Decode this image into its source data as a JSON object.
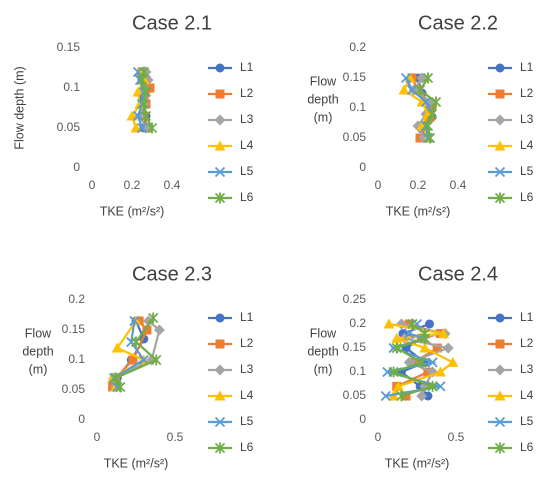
{
  "colors": {
    "L1": "#4472C4",
    "L2": "#ED7D31",
    "L3": "#A5A5A5",
    "L4": "#FFC000",
    "L5": "#5B9BD5",
    "L6": "#70AD47"
  },
  "markers": {
    "L1": "circle",
    "L2": "square",
    "L3": "diamond",
    "L4": "triangle",
    "L5": "x",
    "L6": "star"
  },
  "chart_data": [
    {
      "type": "scatter",
      "title": "Case 2.1",
      "xlabel": "TKE (m²/s²)",
      "ylabel": "",
      "xlim": [
        0,
        0.4
      ],
      "ylim": [
        0,
        0.15
      ],
      "xticks": [
        "0",
        "0.2",
        "0.4"
      ],
      "yticks": [
        "0",
        "0.05",
        "0.1",
        "0.15"
      ],
      "legend_position": "right",
      "series": [
        {
          "name": "L1",
          "x": [
            0.26,
            0.27,
            0.25,
            0.24,
            0.25,
            0.26
          ],
          "y": [
            0.05,
            0.065,
            0.08,
            0.095,
            0.11,
            0.12
          ]
        },
        {
          "name": "L2",
          "x": [
            0.28,
            0.26,
            0.27,
            0.29,
            0.27,
            0.25
          ],
          "y": [
            0.05,
            0.065,
            0.08,
            0.1,
            0.11,
            0.12
          ]
        },
        {
          "name": "L3",
          "x": [
            0.27,
            0.24,
            0.26,
            0.25,
            0.28,
            0.27
          ],
          "y": [
            0.05,
            0.065,
            0.08,
            0.095,
            0.11,
            0.12
          ]
        },
        {
          "name": "L4",
          "x": [
            0.22,
            0.2,
            0.24,
            0.23,
            0.26,
            0.24
          ],
          "y": [
            0.05,
            0.065,
            0.08,
            0.095,
            0.11,
            0.12
          ]
        },
        {
          "name": "L5",
          "x": [
            0.25,
            0.23,
            0.25,
            0.26,
            0.24,
            0.23
          ],
          "y": [
            0.05,
            0.065,
            0.08,
            0.095,
            0.11,
            0.12
          ]
        },
        {
          "name": "L6",
          "x": [
            0.3,
            0.27,
            0.26,
            0.27,
            0.25,
            0.26
          ],
          "y": [
            0.05,
            0.065,
            0.08,
            0.095,
            0.11,
            0.12
          ]
        }
      ]
    },
    {
      "type": "scatter",
      "title": "Case 2.2",
      "xlabel": "TKE (m²/s²)",
      "ylabel": "Flow depth (m)",
      "xlim": [
        0,
        0.4
      ],
      "ylim": [
        0,
        0.2
      ],
      "xticks": [
        "0",
        "0.2",
        "0.4"
      ],
      "yticks": [
        "0",
        "0.05",
        "0.1",
        "0.15",
        "0.2"
      ],
      "legend_position": "right",
      "series": [
        {
          "name": "L1",
          "x": [
            0.24,
            0.22,
            0.27,
            0.25,
            0.22,
            0.2
          ],
          "y": [
            0.05,
            0.065,
            0.085,
            0.105,
            0.125,
            0.15
          ]
        },
        {
          "name": "L2",
          "x": [
            0.21,
            0.23,
            0.26,
            0.27,
            0.2,
            0.17
          ],
          "y": [
            0.05,
            0.07,
            0.085,
            0.105,
            0.13,
            0.15
          ]
        },
        {
          "name": "L3",
          "x": [
            0.23,
            0.2,
            0.24,
            0.26,
            0.18,
            0.22
          ],
          "y": [
            0.05,
            0.07,
            0.09,
            0.11,
            0.13,
            0.15
          ]
        },
        {
          "name": "L4",
          "x": [
            0.25,
            0.22,
            0.25,
            0.22,
            0.13,
            0.16
          ],
          "y": [
            0.05,
            0.07,
            0.09,
            0.11,
            0.13,
            0.15
          ]
        },
        {
          "name": "L5",
          "x": [
            0.25,
            0.24,
            0.27,
            0.24,
            0.17,
            0.14
          ],
          "y": [
            0.05,
            0.07,
            0.09,
            0.11,
            0.13,
            0.15
          ]
        },
        {
          "name": "L6",
          "x": [
            0.26,
            0.25,
            0.27,
            0.29,
            0.21,
            0.25
          ],
          "y": [
            0.05,
            0.07,
            0.09,
            0.11,
            0.13,
            0.15
          ]
        }
      ]
    },
    {
      "type": "scatter",
      "title": "Case 2.3",
      "xlabel": "TKE (m²/s²)",
      "ylabel": "Flow depth (m)",
      "xlim": [
        0,
        0.5
      ],
      "ylim": [
        0,
        0.2
      ],
      "xticks": [
        "0",
        "0.5"
      ],
      "yticks": [
        "0",
        "0.05",
        "0.1",
        "0.15",
        "0.2"
      ],
      "legend_position": "right",
      "series": [
        {
          "name": "L1",
          "x": [
            0.12,
            0.13,
            0.22,
            0.3,
            0.25
          ],
          "y": [
            0.055,
            0.07,
            0.1,
            0.135,
            0.165
          ]
        },
        {
          "name": "L2",
          "x": [
            0.1,
            0.12,
            0.23,
            0.32,
            0.27
          ],
          "y": [
            0.055,
            0.07,
            0.1,
            0.15,
            0.165
          ]
        },
        {
          "name": "L3",
          "x": [
            0.12,
            0.11,
            0.35,
            0.4,
            0.33
          ],
          "y": [
            0.055,
            0.07,
            0.1,
            0.15,
            0.165
          ]
        },
        {
          "name": "L4",
          "x": [
            0.12,
            0.1,
            0.3,
            0.13,
            0.25
          ],
          "y": [
            0.055,
            0.07,
            0.1,
            0.12,
            0.165
          ]
        },
        {
          "name": "L5",
          "x": [
            0.13,
            0.11,
            0.3,
            0.22,
            0.24
          ],
          "y": [
            0.055,
            0.07,
            0.1,
            0.13,
            0.165
          ]
        },
        {
          "name": "L6",
          "x": [
            0.15,
            0.12,
            0.38,
            0.25,
            0.36
          ],
          "y": [
            0.055,
            0.07,
            0.1,
            0.13,
            0.17
          ]
        }
      ]
    },
    {
      "type": "scatter",
      "title": "Case 2.4",
      "xlabel": "TKE (m²/s²)",
      "ylabel": "Flow depth (m)",
      "xlim": [
        0,
        0.5
      ],
      "ylim": [
        0,
        0.25
      ],
      "xticks": [
        "0",
        "0.5"
      ],
      "yticks": [
        "0",
        "0.05",
        "0.1",
        "0.15",
        "0.2",
        "0.25"
      ],
      "legend_position": "right",
      "series": [
        {
          "name": "L1",
          "x": [
            0.32,
            0.27,
            0.15,
            0.3,
            0.18,
            0.28,
            0.16,
            0.33
          ],
          "y": [
            0.05,
            0.07,
            0.1,
            0.12,
            0.15,
            0.17,
            0.18,
            0.2
          ]
        },
        {
          "name": "L2",
          "x": [
            0.18,
            0.12,
            0.32,
            0.23,
            0.38,
            0.28,
            0.4,
            0.2
          ],
          "y": [
            0.05,
            0.07,
            0.1,
            0.12,
            0.15,
            0.17,
            0.18,
            0.2
          ]
        },
        {
          "name": "L3",
          "x": [
            0.28,
            0.3,
            0.35,
            0.2,
            0.45,
            0.17,
            0.43,
            0.15
          ],
          "y": [
            0.05,
            0.07,
            0.1,
            0.12,
            0.15,
            0.17,
            0.18,
            0.2
          ]
        },
        {
          "name": "L4",
          "x": [
            0.1,
            0.13,
            0.4,
            0.48,
            0.3,
            0.12,
            0.42,
            0.07
          ],
          "y": [
            0.05,
            0.07,
            0.1,
            0.12,
            0.15,
            0.17,
            0.18,
            0.2
          ]
        },
        {
          "name": "L5",
          "x": [
            0.05,
            0.4,
            0.06,
            0.35,
            0.1,
            0.3,
            0.2,
            0.25
          ],
          "y": [
            0.05,
            0.07,
            0.1,
            0.12,
            0.15,
            0.17,
            0.18,
            0.2
          ]
        },
        {
          "name": "L6",
          "x": [
            0.15,
            0.35,
            0.1,
            0.28,
            0.12,
            0.3,
            0.3,
            0.22
          ],
          "y": [
            0.05,
            0.07,
            0.1,
            0.12,
            0.15,
            0.17,
            0.18,
            0.2
          ]
        }
      ]
    }
  ]
}
